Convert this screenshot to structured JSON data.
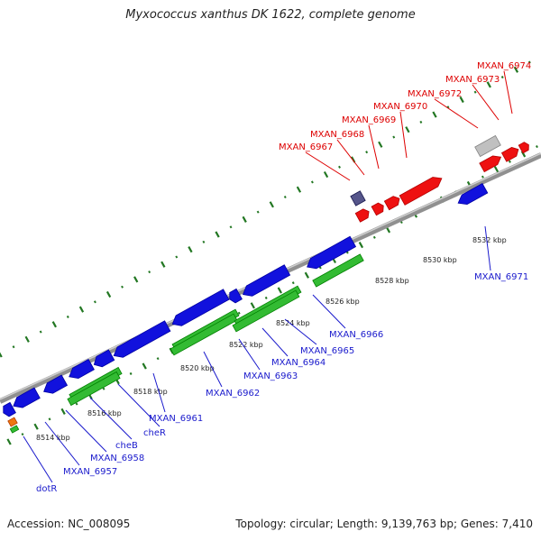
{
  "title": "Myxococcus xanthus DK 1622, complete genome",
  "footer": {
    "accession": "Accession: NC_008095",
    "summary": "Topology: circular; Length: 9,139,763 bp; Genes: 7,410"
  },
  "colors": {
    "forward_gene": "#ee1111",
    "reverse_gene": "#1111dd",
    "reverse_label": "#1a1acc",
    "forward_label": "#dd0000",
    "rna_green": "#33bb33",
    "backbone": "#909090",
    "tick": "#227722",
    "small_purple": "#55558a",
    "gray_gene": "#c0c0c0",
    "orange": "#ee7711"
  },
  "bp_labels": [
    "8514 kbp",
    "8516 kbp",
    "8518 kbp",
    "8520 kbp",
    "8522 kbp",
    "8524 kbp",
    "8526 kbp",
    "8528 kbp",
    "8530 kbp",
    "8532 kbp"
  ],
  "reverse_gene_labels": [
    "dotR",
    "MXAN_6957",
    "MXAN_6958",
    "cheB",
    "cheR",
    "MXAN_6961",
    "MXAN_6962",
    "MXAN_6963",
    "MXAN_6964",
    "MXAN_6965",
    "MXAN_6966",
    "MXAN_6971"
  ],
  "forward_gene_labels": [
    "MXAN_6967",
    "MXAN_6968",
    "MXAN_6969",
    "MXAN_6970",
    "MXAN_6972",
    "MXAN_6973",
    "MXAN_6974"
  ]
}
